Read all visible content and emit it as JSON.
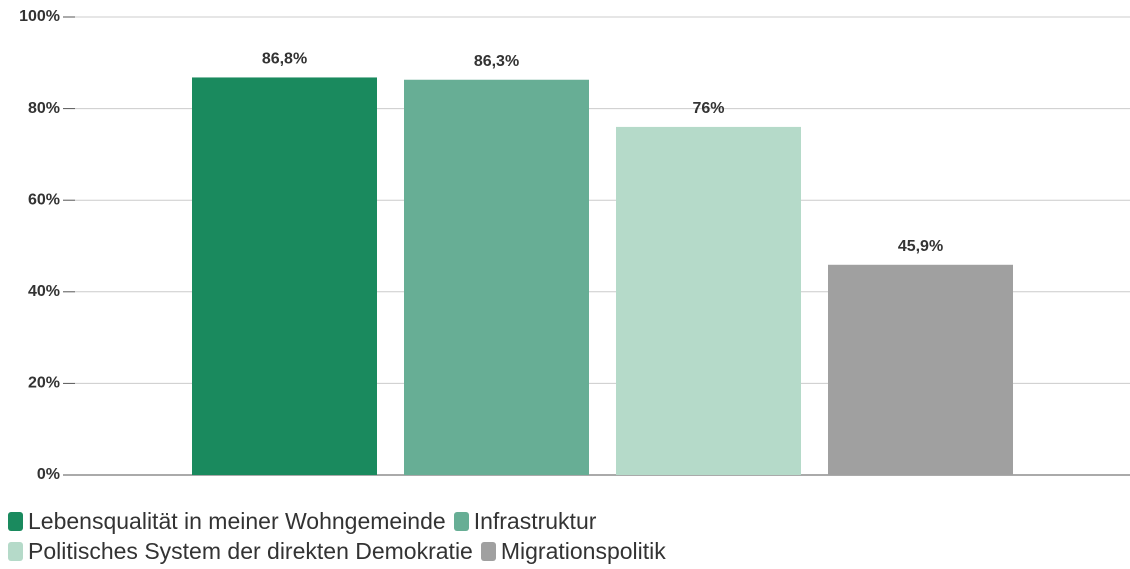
{
  "chart_data": {
    "type": "bar",
    "categories": [
      null
    ],
    "series": [
      {
        "name": "Lebensqualität in meiner Wohngemeinde",
        "color": "#1a8a5e",
        "values": [
          86.8
        ],
        "value_labels": [
          "86,8%"
        ]
      },
      {
        "name": "Infrastruktur",
        "color": "#67ae95",
        "values": [
          86.3
        ],
        "value_labels": [
          "86,3%"
        ]
      },
      {
        "name": "Politisches System der direkten Demokratie",
        "color": "#b5dac9",
        "values": [
          76
        ],
        "value_labels": [
          "76%"
        ]
      },
      {
        "name": "Migrationspolitik",
        "color": "#a0a0a0",
        "values": [
          45.9
        ],
        "value_labels": [
          "45,9%"
        ]
      }
    ],
    "ylim": [
      0,
      100
    ],
    "yticks": [
      {
        "value": 0,
        "label": "0%"
      },
      {
        "value": 20,
        "label": "20%"
      },
      {
        "value": 40,
        "label": "40%"
      },
      {
        "value": 60,
        "label": "60%"
      },
      {
        "value": 80,
        "label": "80%"
      },
      {
        "value": 100,
        "label": "100%"
      }
    ],
    "grid": true,
    "legend": "bottom"
  }
}
